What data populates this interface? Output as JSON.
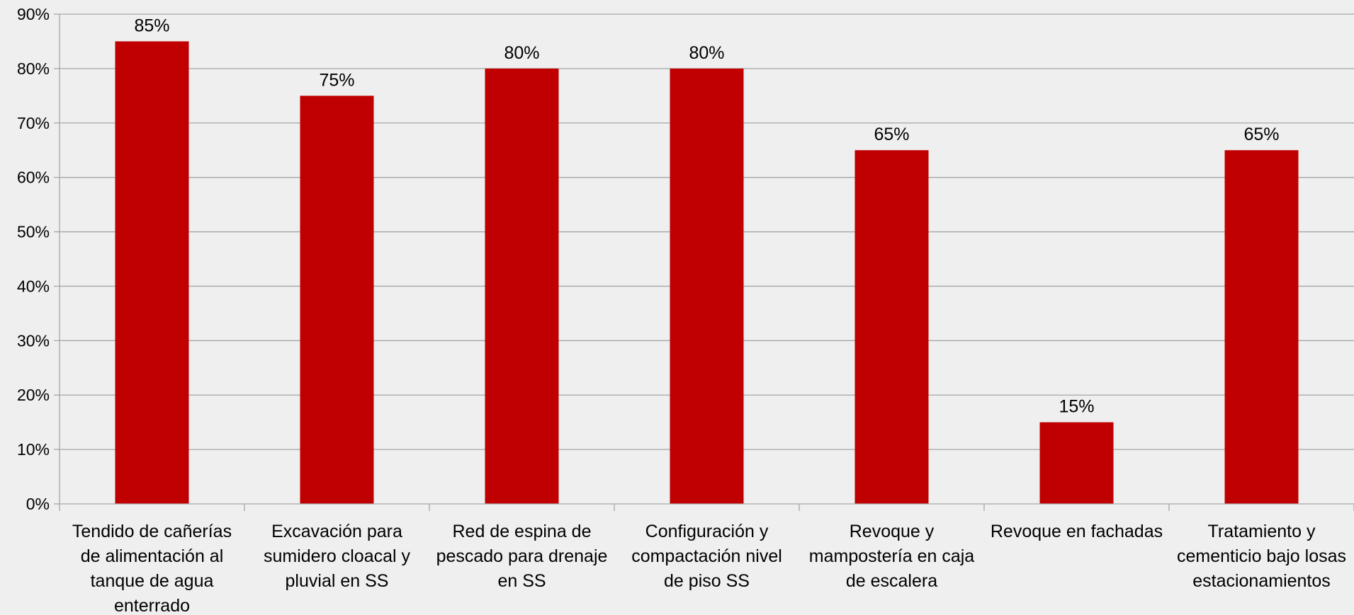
{
  "chart_data": {
    "type": "bar",
    "title": "",
    "xlabel": "",
    "ylabel": "",
    "categories": [
      [
        "Tendido de cañerías",
        "de alimentación al",
        "tanque de agua",
        "enterrado"
      ],
      [
        "Excavación para",
        "sumidero cloacal y",
        "pluvial en SS"
      ],
      [
        "Red de espina de",
        "pescado para drenaje",
        "en SS"
      ],
      [
        "Configuración y",
        "compactación nivel",
        "de piso SS"
      ],
      [
        "Revoque y",
        "mampostería en caja",
        "de escalera"
      ],
      [
        "Revoque en fachadas"
      ],
      [
        "Tratamiento y",
        "cementicio bajo losas",
        "estacionamientos"
      ]
    ],
    "values": [
      85,
      75,
      80,
      80,
      65,
      15,
      65
    ],
    "data_labels": [
      "85%",
      "75%",
      "80%",
      "80%",
      "65%",
      "15%",
      "65%"
    ],
    "ylim": [
      0,
      90
    ],
    "ytick_step": 10,
    "ytick_labels": [
      "0%",
      "10%",
      "20%",
      "30%",
      "40%",
      "50%",
      "60%",
      "70%",
      "80%",
      "90%"
    ],
    "grid": true,
    "legend": "none",
    "colors": {
      "bar": "#c00000",
      "grid": "#a6a6a6",
      "axis": "#a6a6a6",
      "background": "#efefef"
    }
  }
}
